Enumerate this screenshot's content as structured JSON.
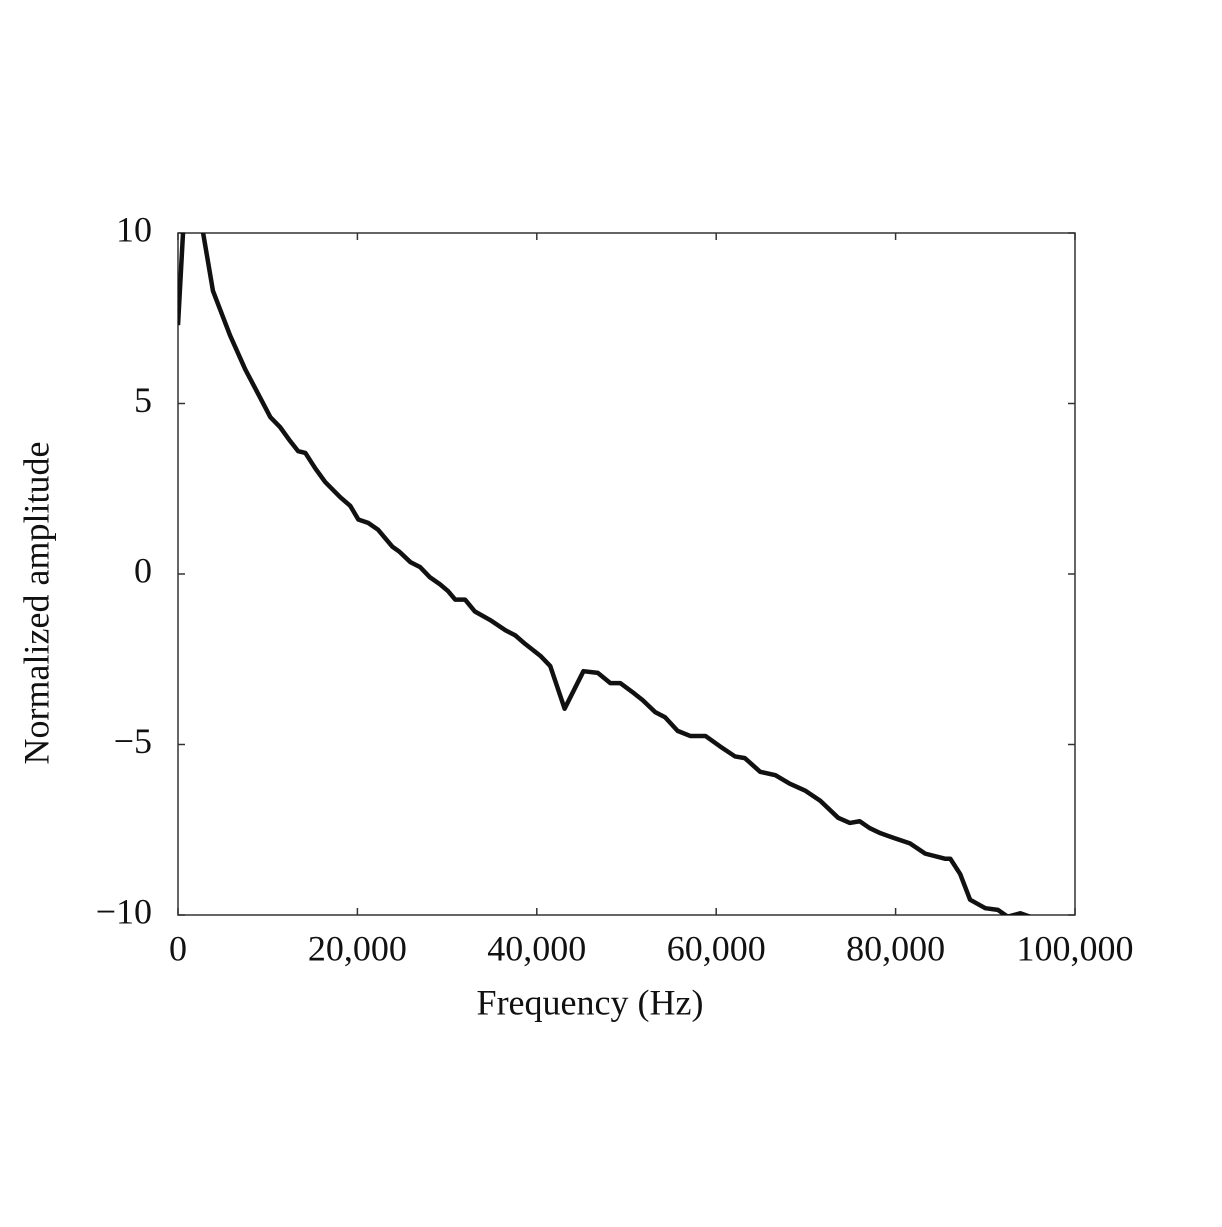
{
  "chart_data": {
    "type": "line",
    "xlabel": "Frequency (Hz)",
    "ylabel": "Normalized amplitude",
    "x": [
      0,
      600,
      1500,
      2800,
      3900,
      5800,
      7500,
      9100,
      10300,
      11400,
      12500,
      13400,
      14200,
      15300,
      16400,
      18100,
      19200,
      20100,
      21200,
      22300,
      23900,
      24700,
      25900,
      27000,
      28100,
      29200,
      30100,
      30900,
      32000,
      33100,
      34800,
      36500,
      37600,
      38700,
      40400,
      41500,
      43100,
      45200,
      46800,
      48200,
      49300,
      50600,
      51800,
      53200,
      54300,
      55700,
      57100,
      58800,
      60400,
      62100,
      63200,
      64900,
      66600,
      68200,
      69900,
      71600,
      73600,
      74900,
      76000,
      77100,
      78300,
      79900,
      81600,
      83300,
      85500,
      86100,
      87200,
      88300,
      90000,
      91400,
      92500,
      93900,
      95000
    ],
    "series": [
      {
        "name": "Normalized amplitude",
        "color": "#111111",
        "values": [
          7.3,
          10.2,
          12,
          10,
          8.3,
          7.0,
          6.0,
          5.2,
          4.6,
          4.3,
          3.9,
          3.6,
          3.55,
          3.1,
          2.7,
          2.25,
          2.0,
          1.6,
          1.5,
          1.3,
          0.8,
          0.65,
          0.35,
          0.2,
          -0.1,
          -0.3,
          -0.5,
          -0.75,
          -0.75,
          -1.1,
          -1.35,
          -1.65,
          -1.8,
          -2.05,
          -2.4,
          -2.7,
          -3.95,
          -2.85,
          -2.9,
          -3.2,
          -3.2,
          -3.45,
          -3.7,
          -4.05,
          -4.2,
          -4.6,
          -4.75,
          -4.75,
          -5.05,
          -5.35,
          -5.4,
          -5.8,
          -5.9,
          -6.15,
          -6.35,
          -6.65,
          -7.15,
          -7.3,
          -7.25,
          -7.45,
          -7.6,
          -7.75,
          -7.9,
          -8.2,
          -8.35,
          -8.35,
          -8.8,
          -9.55,
          -9.8,
          -9.85,
          -10.05,
          -9.95,
          -10.05
        ]
      }
    ],
    "xlim": [
      0,
      100000
    ],
    "xticks": [
      0,
      {
        "value": 20000,
        "label": "20,000"
      },
      {
        "value": 40000,
        "label": "40,000"
      },
      {
        "value": 60000,
        "label": "60,000"
      },
      {
        "value": 80000,
        "label": "80,000"
      },
      {
        "value": 100000,
        "label": "100,000"
      }
    ],
    "ylim": [
      -10,
      10
    ],
    "yticks": [
      {
        "value": -10,
        "label": "−10"
      },
      {
        "value": -5,
        "label": "−5"
      },
      0,
      5,
      10
    ],
    "grid": false
  }
}
